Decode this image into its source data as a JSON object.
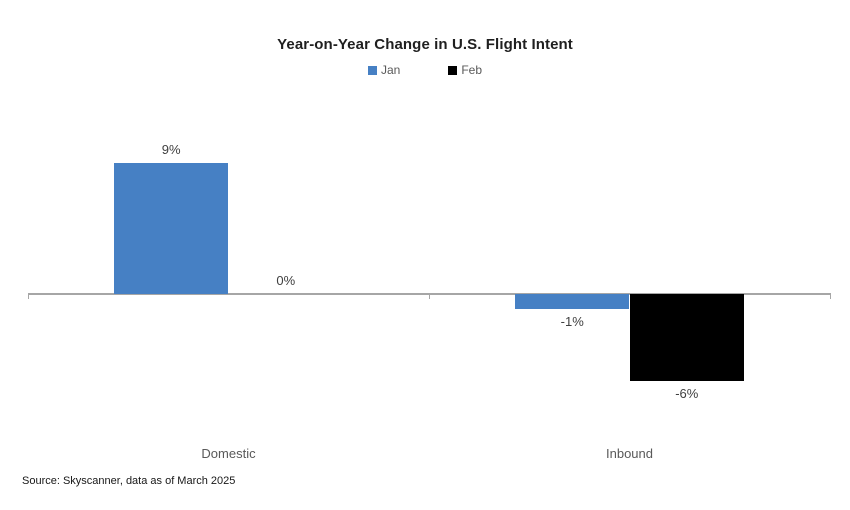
{
  "title": "Year-on-Year Change in U.S. Flight Intent",
  "source_note": "Source: Skyscanner, data as of March 2025",
  "chart_data": {
    "type": "bar",
    "title": "Year-on-Year Change in U.S. Flight Intent",
    "categories": [
      "Domestic",
      "Inbound"
    ],
    "series": [
      {
        "name": "Jan",
        "color": "#4680C4",
        "values": [
          9,
          -1
        ],
        "labels": [
          "9%",
          "-1%"
        ]
      },
      {
        "name": "Feb",
        "color": "#000000",
        "values": [
          0,
          -6
        ],
        "labels": [
          "0%",
          "-6%"
        ]
      }
    ],
    "unit": "%",
    "ylim": [
      -6,
      9
    ],
    "baseline": 0,
    "grid": false,
    "legend_position": "top",
    "data_labels": "outside-end",
    "axis_color": "#A6A6A6",
    "value_label_color": "#404040",
    "category_label_color": "#595959"
  }
}
